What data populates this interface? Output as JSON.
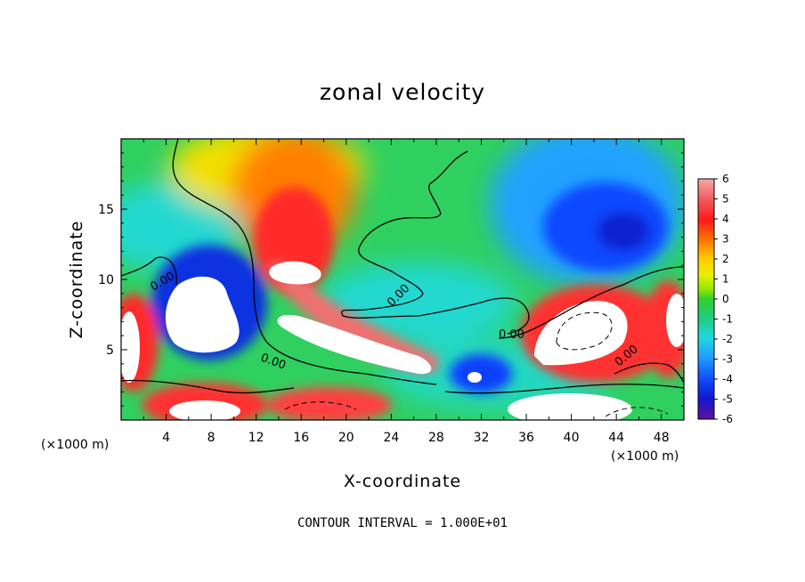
{
  "chart_data": {
    "type": "heatmap",
    "title": "zonal velocity",
    "xlabel": "X-coordinate",
    "ylabel": "Z-coordinate",
    "x_unit_left": "(×1000 m)",
    "x_unit_right": "(×1000 m)",
    "xlim": [
      0,
      50
    ],
    "ylim": [
      0,
      20
    ],
    "x_ticks": [
      4,
      8,
      12,
      16,
      20,
      24,
      28,
      32,
      36,
      40,
      44,
      48
    ],
    "y_ticks": [
      5,
      10,
      15
    ],
    "colorbar": {
      "range": [
        -6,
        6
      ],
      "ticks": [
        6,
        5,
        4,
        3,
        2,
        1,
        0,
        -1,
        -2,
        -3,
        -4,
        -5,
        -6
      ],
      "colors": [
        "#f2a2a2",
        "#f06a6a",
        "#ff2020",
        "#ff6a00",
        "#ffc000",
        "#eeee00",
        "#b8ee00",
        "#38d838",
        "#20cc78",
        "#20d8d8",
        "#20a0ff",
        "#1060ff",
        "#1020e0",
        "#2010a0",
        "#5010a0"
      ]
    },
    "contour_labels": [
      "0.00",
      "0.00",
      "0.00",
      "0.00",
      "0.00"
    ],
    "footer": "CONTOUR INTERVAL = 1.000E+01"
  }
}
